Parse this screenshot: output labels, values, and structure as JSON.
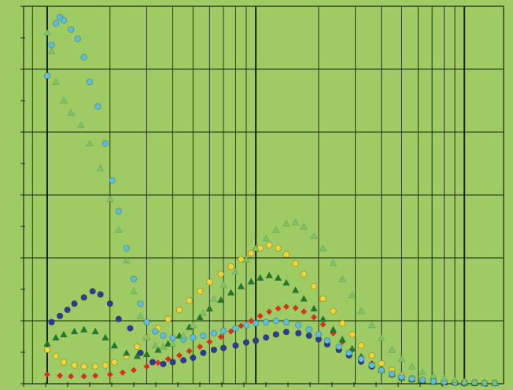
{
  "chart_data": {
    "type": "scatter",
    "title": "",
    "xlabel": "",
    "ylabel": "",
    "xscale": "log",
    "xlim": [
      1,
      200
    ],
    "ylim": [
      0,
      6
    ],
    "grid": true,
    "legend": "none",
    "colors": {
      "background": "#9ecb63",
      "grid": "#1b2314"
    },
    "series": [
      {
        "color": "#2e3a9a",
        "marker": "circle",
        "x": [
          1.05,
          1.15,
          1.25,
          1.35,
          1.5,
          1.65,
          1.8,
          2.0,
          2.2,
          2.5,
          2.8,
          3.2,
          3.6,
          4.0,
          4.5,
          5.0,
          5.6,
          6.3,
          7.0,
          8.0,
          9.0,
          10.0,
          11.2,
          12.5,
          14.0,
          16.0,
          18.0,
          20.0,
          22.0,
          25.0,
          28.0,
          32.0,
          36.0,
          40.0,
          45.0,
          50.0,
          56.0,
          63.0,
          71.0,
          80.0,
          90.0,
          100.0,
          112.0,
          125.0,
          140.0,
          160.0
        ],
        "y": [
          1.0,
          1.1,
          1.2,
          1.3,
          1.4,
          1.5,
          1.45,
          1.3,
          1.05,
          0.9,
          0.5,
          0.35,
          0.32,
          0.35,
          0.38,
          0.42,
          0.5,
          0.55,
          0.58,
          0.62,
          0.67,
          0.7,
          0.75,
          0.8,
          0.84,
          0.82,
          0.78,
          0.72,
          0.64,
          0.55,
          0.46,
          0.36,
          0.28,
          0.22,
          0.15,
          0.1,
          0.07,
          0.05,
          0.04,
          0.03,
          0.02,
          0.02,
          0.01,
          0.01,
          0.01,
          0.01
        ]
      },
      {
        "color": "#e8281e",
        "marker": "diamond",
        "x": [
          1.0,
          1.15,
          1.3,
          1.5,
          1.7,
          2.0,
          2.3,
          2.6,
          3.0,
          3.4,
          3.8,
          4.3,
          4.8,
          5.4,
          6.0,
          6.8,
          7.6,
          8.5,
          9.5,
          10.5,
          11.6,
          12.8,
          14.0,
          15.5,
          17.0,
          19.0,
          21.0,
          23.5,
          26.0,
          29.0,
          32.0,
          36.0,
          40.0,
          45.0,
          50.0,
          56.0,
          63.0,
          71.0,
          80.0,
          90.0,
          100.0,
          112.0,
          125.0,
          140.0,
          160.0
        ],
        "y": [
          0.15,
          0.13,
          0.12,
          0.12,
          0.13,
          0.15,
          0.18,
          0.22,
          0.28,
          0.34,
          0.4,
          0.46,
          0.53,
          0.6,
          0.68,
          0.76,
          0.85,
          0.94,
          1.02,
          1.1,
          1.17,
          1.22,
          1.25,
          1.23,
          1.17,
          1.08,
          0.96,
          0.82,
          0.68,
          0.55,
          0.43,
          0.33,
          0.24,
          0.17,
          0.12,
          0.08,
          0.05,
          0.04,
          0.03,
          0.02,
          0.02,
          0.01,
          0.01,
          0.01,
          0.01
        ]
      },
      {
        "color": "#f2d434",
        "marker": "circle",
        "x": [
          1.0,
          1.1,
          1.2,
          1.35,
          1.5,
          1.7,
          1.9,
          2.1,
          2.4,
          2.7,
          3.0,
          3.4,
          3.8,
          4.3,
          4.8,
          5.4,
          6.0,
          6.8,
          7.6,
          8.5,
          9.5,
          10.5,
          11.6,
          12.8,
          14.0,
          15.5,
          17.0,
          19.0,
          21.0,
          23.5,
          26.0,
          29.0,
          32.0,
          36.0,
          40.0,
          45.0,
          50.0,
          56.0,
          63.0,
          71.0,
          80.0,
          90.0,
          100.0,
          112.0,
          125.0,
          140.0,
          160.0
        ],
        "y": [
          0.55,
          0.45,
          0.35,
          0.3,
          0.28,
          0.28,
          0.3,
          0.35,
          0.45,
          0.6,
          0.75,
          0.9,
          1.05,
          1.2,
          1.35,
          1.5,
          1.65,
          1.78,
          1.9,
          2.02,
          2.12,
          2.2,
          2.25,
          2.2,
          2.1,
          1.95,
          1.78,
          1.58,
          1.38,
          1.18,
          0.98,
          0.8,
          0.62,
          0.46,
          0.33,
          0.22,
          0.14,
          0.09,
          0.06,
          0.04,
          0.03,
          0.02,
          0.02,
          0.01,
          0.01,
          0.01,
          0.01
        ]
      },
      {
        "color": "#1f7a2e",
        "marker": "triangle",
        "x": [
          1.0,
          1.1,
          1.2,
          1.35,
          1.5,
          1.7,
          1.9,
          2.1,
          2.4,
          2.7,
          3.0,
          3.4,
          3.8,
          4.3,
          4.8,
          5.4,
          6.0,
          6.8,
          7.6,
          8.5,
          9.5,
          10.5,
          11.6,
          12.8,
          14.0,
          15.5,
          17.0,
          19.0,
          21.0,
          23.5,
          26.0,
          29.0,
          32.0,
          36.0,
          40.0,
          45.0,
          50.0,
          56.0,
          63.0,
          71.0,
          80.0,
          90.0,
          100.0,
          112.0,
          125.0,
          140.0
        ],
        "y": [
          0.65,
          0.75,
          0.8,
          0.85,
          0.88,
          0.85,
          0.75,
          0.62,
          0.5,
          0.45,
          0.48,
          0.55,
          0.65,
          0.78,
          0.92,
          1.08,
          1.22,
          1.36,
          1.48,
          1.58,
          1.66,
          1.72,
          1.76,
          1.72,
          1.64,
          1.52,
          1.38,
          1.22,
          1.05,
          0.88,
          0.72,
          0.57,
          0.44,
          0.32,
          0.23,
          0.16,
          0.1,
          0.07,
          0.05,
          0.03,
          0.02,
          0.02,
          0.01,
          0.01,
          0.01,
          0.01
        ]
      },
      {
        "color": "#5bbde0",
        "marker": "circle",
        "x": [
          1.0,
          1.05,
          1.1,
          1.15,
          1.2,
          1.3,
          1.4,
          1.5,
          1.6,
          1.75,
          1.9,
          2.05,
          2.2,
          2.4,
          2.6,
          2.8,
          3.0,
          3.3,
          3.6,
          4.0,
          4.5,
          5.0,
          5.6,
          6.3,
          7.0,
          8.0,
          9.0,
          10.0,
          11.2,
          12.5,
          14.0,
          16.0,
          18.0,
          20.0,
          22.0,
          25.0,
          28.0,
          32.0,
          36.0,
          40.0,
          45.0,
          50.0,
          56.0,
          63.0,
          71.0,
          80.0,
          90.0,
          100.0,
          112.0,
          125.0,
          140.0,
          160.0
        ],
        "y": [
          5.0,
          5.5,
          5.85,
          5.95,
          5.9,
          5.75,
          5.6,
          5.3,
          4.9,
          4.5,
          3.9,
          3.3,
          2.8,
          2.2,
          1.7,
          1.3,
          1.0,
          0.85,
          0.78,
          0.74,
          0.72,
          0.75,
          0.78,
          0.82,
          0.86,
          0.9,
          0.95,
          0.98,
          1.0,
          1.02,
          1.0,
          0.95,
          0.88,
          0.8,
          0.7,
          0.6,
          0.5,
          0.4,
          0.3,
          0.22,
          0.16,
          0.11,
          0.08,
          0.06,
          0.04,
          0.03,
          0.02,
          0.02,
          0.02,
          0.01,
          0.01,
          0.01
        ]
      },
      {
        "color": "#7cc46a",
        "marker": "triangle",
        "x": [
          1.0,
          1.05,
          1.1,
          1.2,
          1.3,
          1.45,
          1.6,
          1.8,
          2.0,
          2.2,
          2.4,
          2.6,
          2.8,
          3.0,
          3.3,
          3.6,
          4.0,
          4.5,
          5.0,
          5.6,
          6.3,
          7.0,
          8.0,
          9.0,
          10.0,
          11.2,
          12.5,
          14.0,
          15.5,
          17.0,
          19.0,
          21.0,
          23.5,
          26.0,
          29.0,
          32.0,
          36.0,
          40.0,
          45.0,
          50.0,
          56.0,
          63.0,
          71.0,
          80.0,
          90.0,
          100.0,
          112.0,
          125.0,
          140.0,
          160.0
        ],
        "y": [
          5.7,
          5.4,
          4.9,
          4.6,
          4.4,
          4.2,
          3.9,
          3.5,
          3.0,
          2.5,
          2.0,
          1.5,
          1.1,
          0.75,
          0.62,
          0.6,
          0.65,
          0.78,
          0.95,
          1.15,
          1.38,
          1.6,
          1.82,
          2.02,
          2.2,
          2.36,
          2.5,
          2.6,
          2.62,
          2.55,
          2.4,
          2.2,
          1.96,
          1.7,
          1.44,
          1.18,
          0.95,
          0.74,
          0.55,
          0.4,
          0.28,
          0.19,
          0.13,
          0.09,
          0.06,
          0.04,
          0.03,
          0.02,
          0.02,
          0.01
        ]
      }
    ]
  }
}
